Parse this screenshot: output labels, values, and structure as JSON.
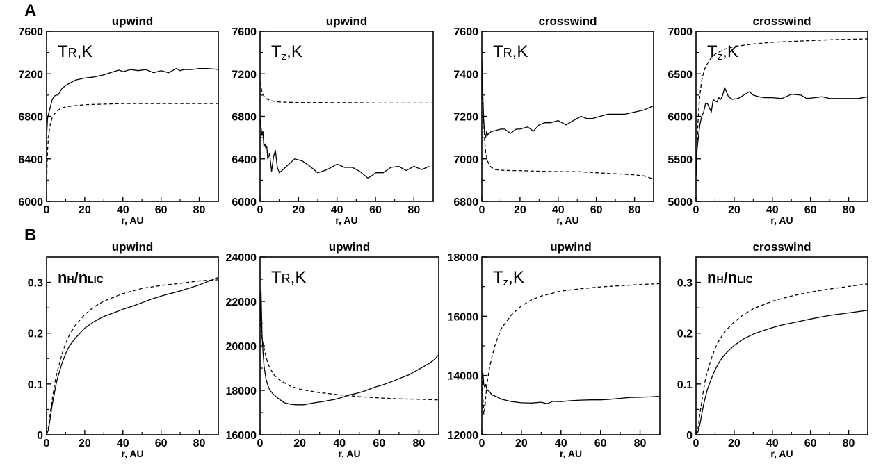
{
  "figure": {
    "row_labels": [
      "A",
      "B"
    ]
  },
  "chart_data": [
    {
      "type": "line",
      "title": "upwind",
      "inset_label": {
        "main": "T",
        "sub": "R",
        "rest": ",K",
        "sub_kind": "smallcaps"
      },
      "xlabel": "r, AU",
      "xlim": [
        0,
        90
      ],
      "xticks": [
        0,
        20,
        40,
        60,
        80
      ],
      "ylim": [
        6000,
        7600
      ],
      "yticks": [
        6000,
        6400,
        6800,
        7200,
        7600
      ],
      "series": [
        {
          "style": "solid",
          "x": [
            0,
            0.5,
            1,
            2,
            3,
            4,
            5,
            6,
            8,
            10,
            12,
            15,
            20,
            25,
            30,
            35,
            38,
            40,
            44,
            48,
            52,
            56,
            60,
            64,
            66,
            68,
            70,
            72,
            76,
            80,
            84,
            88,
            90
          ],
          "y": [
            6600,
            6780,
            6820,
            6890,
            6960,
            6990,
            7000,
            7000,
            7060,
            7090,
            7110,
            7140,
            7160,
            7170,
            7190,
            7220,
            7235,
            7220,
            7240,
            7230,
            7240,
            7210,
            7230,
            7210,
            7230,
            7250,
            7230,
            7240,
            7240,
            7250,
            7250,
            7245,
            7240
          ]
        },
        {
          "style": "dashed",
          "x": [
            0,
            0.3,
            0.6,
            1,
            1.5,
            2,
            3,
            4,
            5,
            7,
            10,
            15,
            20,
            30,
            40,
            50,
            60,
            70,
            80,
            90
          ],
          "y": [
            6150,
            6350,
            6500,
            6600,
            6680,
            6730,
            6790,
            6820,
            6840,
            6870,
            6890,
            6900,
            6910,
            6915,
            6920,
            6920,
            6920,
            6920,
            6920,
            6920
          ]
        }
      ]
    },
    {
      "type": "line",
      "title": "upwind",
      "inset_label": {
        "main": "T",
        "sub": "z",
        "rest": ",K",
        "sub_kind": "subscript"
      },
      "xlabel": "r, AU",
      "xlim": [
        0,
        90
      ],
      "xticks": [
        0,
        20,
        40,
        60,
        80
      ],
      "ylim": [
        6000,
        7600
      ],
      "yticks": [
        6000,
        6400,
        6800,
        7200,
        7600
      ],
      "series": [
        {
          "style": "solid",
          "x": [
            0,
            0.5,
            1,
            1.5,
            2,
            2.5,
            3,
            3.5,
            4,
            5,
            6,
            7,
            8,
            9,
            10,
            12,
            15,
            18,
            22,
            26,
            30,
            35,
            40,
            44,
            48,
            52,
            56,
            58,
            60,
            64,
            68,
            72,
            76,
            80,
            84,
            88
          ],
          "y": [
            6780,
            6700,
            6620,
            6660,
            6520,
            6540,
            6500,
            6520,
            6400,
            6450,
            6280,
            6420,
            6480,
            6320,
            6270,
            6300,
            6350,
            6400,
            6380,
            6330,
            6270,
            6300,
            6350,
            6320,
            6320,
            6280,
            6220,
            6240,
            6270,
            6270,
            6320,
            6330,
            6290,
            6330,
            6300,
            6330
          ]
        },
        {
          "style": "dashed",
          "x": [
            0,
            0.5,
            1,
            2,
            3,
            4,
            6,
            8,
            10,
            15,
            20,
            30,
            40,
            50,
            60,
            70,
            80,
            90
          ],
          "y": [
            7120,
            7080,
            7030,
            6990,
            6970,
            6960,
            6945,
            6940,
            6935,
            6932,
            6930,
            6930,
            6928,
            6928,
            6925,
            6925,
            6925,
            6925
          ]
        }
      ]
    },
    {
      "type": "line",
      "title": "crosswind",
      "inset_label": {
        "main": "T",
        "sub": "R",
        "rest": ",K",
        "sub_kind": "smallcaps"
      },
      "xlabel": "r, AU",
      "xlim": [
        0,
        90
      ],
      "xticks": [
        0,
        20,
        40,
        60,
        80
      ],
      "ylim": [
        6800,
        7600
      ],
      "yticks": [
        6800,
        7000,
        7200,
        7400,
        7600
      ],
      "series": [
        {
          "style": "solid",
          "x": [
            0,
            0.5,
            1,
            1.5,
            2,
            2.5,
            3,
            3.5,
            4,
            5,
            6,
            8,
            10,
            12,
            15,
            18,
            20,
            24,
            27,
            30,
            33,
            36,
            40,
            44,
            48,
            52,
            55,
            58,
            62,
            66,
            70,
            75,
            80,
            85,
            90
          ],
          "y": [
            7460,
            7300,
            7180,
            7120,
            7100,
            7130,
            7110,
            7120,
            7120,
            7130,
            7130,
            7135,
            7140,
            7140,
            7120,
            7140,
            7140,
            7150,
            7130,
            7160,
            7170,
            7170,
            7180,
            7160,
            7180,
            7200,
            7190,
            7190,
            7200,
            7210,
            7210,
            7210,
            7220,
            7230,
            7250
          ]
        },
        {
          "style": "dashed",
          "x": [
            0,
            0.5,
            1,
            1.5,
            2,
            3,
            4,
            5,
            7,
            10,
            15,
            20,
            30,
            40,
            50,
            60,
            70,
            80,
            85,
            90
          ],
          "y": [
            7350,
            7250,
            7170,
            7080,
            7030,
            6990,
            6970,
            6960,
            6950,
            6947,
            6945,
            6945,
            6942,
            6940,
            6940,
            6935,
            6930,
            6925,
            6920,
            6905
          ]
        }
      ]
    },
    {
      "type": "line",
      "title": "crosswind",
      "inset_label": {
        "main": "T",
        "sub": "z",
        "rest": ",K",
        "sub_kind": "subscript"
      },
      "xlabel": "r, AU",
      "xlim": [
        0,
        90
      ],
      "xticks": [
        0,
        20,
        40,
        60,
        80
      ],
      "ylim": [
        5000,
        7000
      ],
      "yticks": [
        5000,
        5500,
        6000,
        6500,
        7000
      ],
      "series": [
        {
          "style": "solid",
          "x": [
            0,
            0.5,
            1,
            2,
            3,
            4,
            5,
            6,
            7,
            8,
            9,
            10,
            11,
            12,
            13,
            14,
            15,
            17,
            19,
            22,
            25,
            28,
            30,
            33,
            36,
            40,
            45,
            50,
            55,
            58,
            62,
            66,
            70,
            75,
            80,
            85,
            90
          ],
          "y": [
            5300,
            5600,
            5700,
            5900,
            6000,
            6050,
            6150,
            6150,
            6100,
            6050,
            6200,
            6180,
            6170,
            6220,
            6200,
            6250,
            6340,
            6230,
            6200,
            6210,
            6250,
            6290,
            6250,
            6230,
            6220,
            6220,
            6210,
            6260,
            6250,
            6210,
            6220,
            6230,
            6210,
            6210,
            6210,
            6210,
            6230
          ]
        },
        {
          "style": "dashed",
          "x": [
            0,
            0.5,
            1,
            1.5,
            2,
            3,
            4,
            5,
            7,
            10,
            15,
            20,
            30,
            40,
            50,
            60,
            70,
            80,
            90
          ],
          "y": [
            5300,
            5600,
            5900,
            6100,
            6250,
            6420,
            6520,
            6580,
            6660,
            6730,
            6790,
            6820,
            6850,
            6870,
            6880,
            6890,
            6900,
            6905,
            6910
          ]
        }
      ]
    },
    {
      "type": "line",
      "title": "upwind",
      "inset_label": {
        "main": "n",
        "sub": "H",
        "rest": "/n",
        "sub2": "LIC",
        "sub_kind": "smallcaps",
        "bold": true
      },
      "xlabel": "r, AU",
      "xlim": [
        0,
        90
      ],
      "xticks": [
        0,
        20,
        40,
        60,
        80
      ],
      "ylim": [
        0,
        0.35
      ],
      "yticks": [
        0,
        0.1,
        0.2,
        0.3
      ],
      "series": [
        {
          "style": "solid",
          "x": [
            0,
            1,
            2,
            3,
            4,
            5,
            6,
            8,
            10,
            12,
            15,
            20,
            25,
            30,
            35,
            40,
            45,
            50,
            55,
            60,
            70,
            80,
            90
          ],
          "y": [
            0,
            0.01,
            0.035,
            0.06,
            0.08,
            0.1,
            0.115,
            0.14,
            0.16,
            0.175,
            0.19,
            0.21,
            0.223,
            0.233,
            0.24,
            0.247,
            0.253,
            0.26,
            0.267,
            0.273,
            0.283,
            0.295,
            0.31
          ]
        },
        {
          "style": "dashed",
          "x": [
            0,
            1,
            2,
            3,
            4,
            5,
            6,
            8,
            10,
            12,
            15,
            20,
            25,
            30,
            40,
            50,
            60,
            70,
            80,
            90
          ],
          "y": [
            0,
            0.015,
            0.045,
            0.07,
            0.095,
            0.115,
            0.13,
            0.158,
            0.18,
            0.197,
            0.215,
            0.237,
            0.252,
            0.263,
            0.278,
            0.288,
            0.294,
            0.298,
            0.303,
            0.305
          ]
        }
      ]
    },
    {
      "type": "line",
      "title": "upwind",
      "inset_label": {
        "main": "T",
        "sub": "R",
        "rest": ",K",
        "sub_kind": "smallcaps"
      },
      "xlabel": "r, AU",
      "xlim": [
        0,
        90
      ],
      "xticks": [
        0,
        20,
        40,
        60,
        80
      ],
      "ylim": [
        16000,
        24000
      ],
      "yticks": [
        16000,
        18000,
        20000,
        22000,
        24000
      ],
      "series": [
        {
          "style": "solid",
          "x": [
            0,
            0.5,
            1,
            1.5,
            2,
            3,
            4,
            5,
            7,
            9,
            12,
            15,
            18,
            22,
            25,
            28,
            32,
            35,
            38,
            42,
            45,
            48,
            52,
            55,
            58,
            62,
            65,
            68,
            72,
            75,
            78,
            82,
            85,
            88,
            90
          ],
          "y": [
            21200,
            22500,
            20500,
            19700,
            19100,
            18500,
            18200,
            18000,
            17800,
            17650,
            17450,
            17380,
            17350,
            17350,
            17400,
            17450,
            17500,
            17550,
            17600,
            17700,
            17800,
            17850,
            17950,
            18050,
            18150,
            18250,
            18350,
            18450,
            18600,
            18700,
            18850,
            19050,
            19200,
            19400,
            19600
          ]
        },
        {
          "style": "dashed",
          "x": [
            0,
            0.5,
            1,
            1.5,
            2,
            3,
            4,
            5,
            7,
            10,
            15,
            20,
            30,
            40,
            50,
            60,
            70,
            80,
            90
          ],
          "y": [
            21800,
            20800,
            20300,
            20100,
            19900,
            19500,
            19200,
            19000,
            18700,
            18450,
            18200,
            18050,
            17900,
            17800,
            17720,
            17660,
            17620,
            17600,
            17570
          ]
        }
      ]
    },
    {
      "type": "line",
      "title": "upwind",
      "inset_label": {
        "main": "T",
        "sub": "z",
        "rest": ",K",
        "sub_kind": "subscript"
      },
      "xlabel": "r, AU",
      "xlim": [
        0,
        90
      ],
      "xticks": [
        0,
        20,
        40,
        60,
        80
      ],
      "ylim": [
        12000,
        18000
      ],
      "yticks": [
        12000,
        14000,
        16000,
        18000
      ],
      "series": [
        {
          "style": "solid",
          "x": [
            0,
            0.5,
            1,
            1.5,
            2,
            2.5,
            3,
            4,
            5,
            7,
            10,
            15,
            20,
            25,
            30,
            33,
            36,
            40,
            45,
            50,
            55,
            60,
            65,
            70,
            75,
            80,
            85,
            90
          ],
          "y": [
            13900,
            14100,
            13700,
            13600,
            13700,
            13550,
            13500,
            13450,
            13350,
            13300,
            13200,
            13120,
            13080,
            13070,
            13100,
            13050,
            13130,
            13120,
            13150,
            13170,
            13180,
            13180,
            13200,
            13230,
            13260,
            13270,
            13280,
            13300
          ]
        },
        {
          "style": "dashed",
          "x": [
            0,
            0.5,
            1,
            1.5,
            2,
            3,
            4,
            5,
            7,
            10,
            15,
            20,
            25,
            30,
            40,
            50,
            60,
            70,
            80,
            90
          ],
          "y": [
            14000,
            13300,
            12700,
            12900,
            13300,
            13900,
            14300,
            14600,
            15100,
            15600,
            16050,
            16350,
            16550,
            16680,
            16850,
            16930,
            16990,
            17030,
            17070,
            17100
          ]
        }
      ]
    },
    {
      "type": "line",
      "title": "crosswind",
      "inset_label": {
        "main": "n",
        "sub": "H",
        "rest": "/n",
        "sub2": "LIC",
        "sub_kind": "smallcaps",
        "bold": true
      },
      "xlabel": "r, AU",
      "xlim": [
        0,
        90
      ],
      "xticks": [
        0,
        20,
        40,
        60,
        80
      ],
      "ylim": [
        0,
        0.35
      ],
      "yticks": [
        0,
        0.1,
        0.2,
        0.3
      ],
      "series": [
        {
          "style": "solid",
          "x": [
            0,
            1,
            2,
            3,
            4,
            5,
            6,
            8,
            10,
            12,
            15,
            20,
            25,
            30,
            35,
            40,
            45,
            50,
            55,
            60,
            70,
            80,
            90
          ],
          "y": [
            0,
            0.005,
            0.02,
            0.04,
            0.06,
            0.075,
            0.09,
            0.11,
            0.128,
            0.142,
            0.158,
            0.176,
            0.189,
            0.198,
            0.205,
            0.211,
            0.216,
            0.22,
            0.224,
            0.228,
            0.235,
            0.24,
            0.245
          ]
        },
        {
          "style": "dashed",
          "x": [
            0,
            1,
            2,
            3,
            4,
            5,
            6,
            8,
            10,
            12,
            15,
            20,
            25,
            30,
            40,
            50,
            60,
            70,
            80,
            90
          ],
          "y": [
            0,
            0.01,
            0.04,
            0.065,
            0.09,
            0.11,
            0.125,
            0.15,
            0.17,
            0.185,
            0.203,
            0.222,
            0.237,
            0.248,
            0.263,
            0.273,
            0.281,
            0.287,
            0.292,
            0.297
          ]
        }
      ]
    }
  ]
}
